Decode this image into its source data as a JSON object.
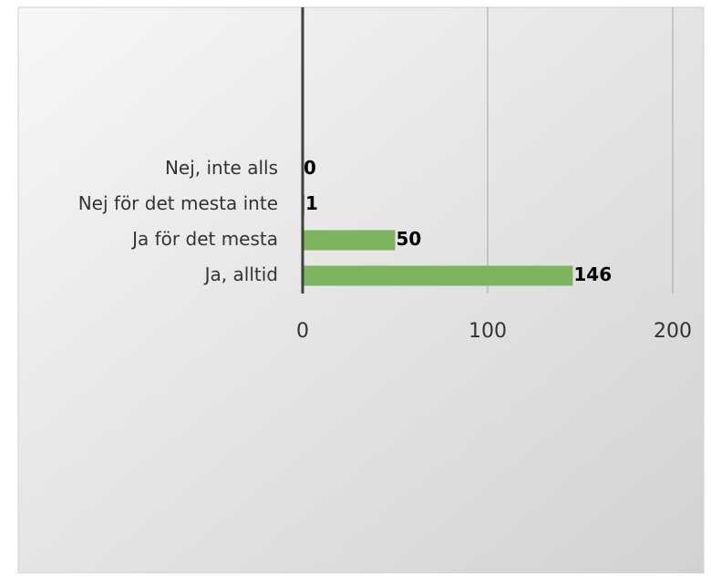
{
  "chart_data": {
    "type": "bar",
    "orientation": "horizontal",
    "categories": [
      "Nej, inte alls",
      "Nej för det mesta inte",
      "Ja för det mesta",
      "Ja, alltid"
    ],
    "values": [
      0,
      1,
      50,
      146
    ],
    "color": "#7cb55e",
    "xlim": [
      0,
      200
    ],
    "xticks": [
      0,
      100,
      200
    ],
    "grid": true
  }
}
